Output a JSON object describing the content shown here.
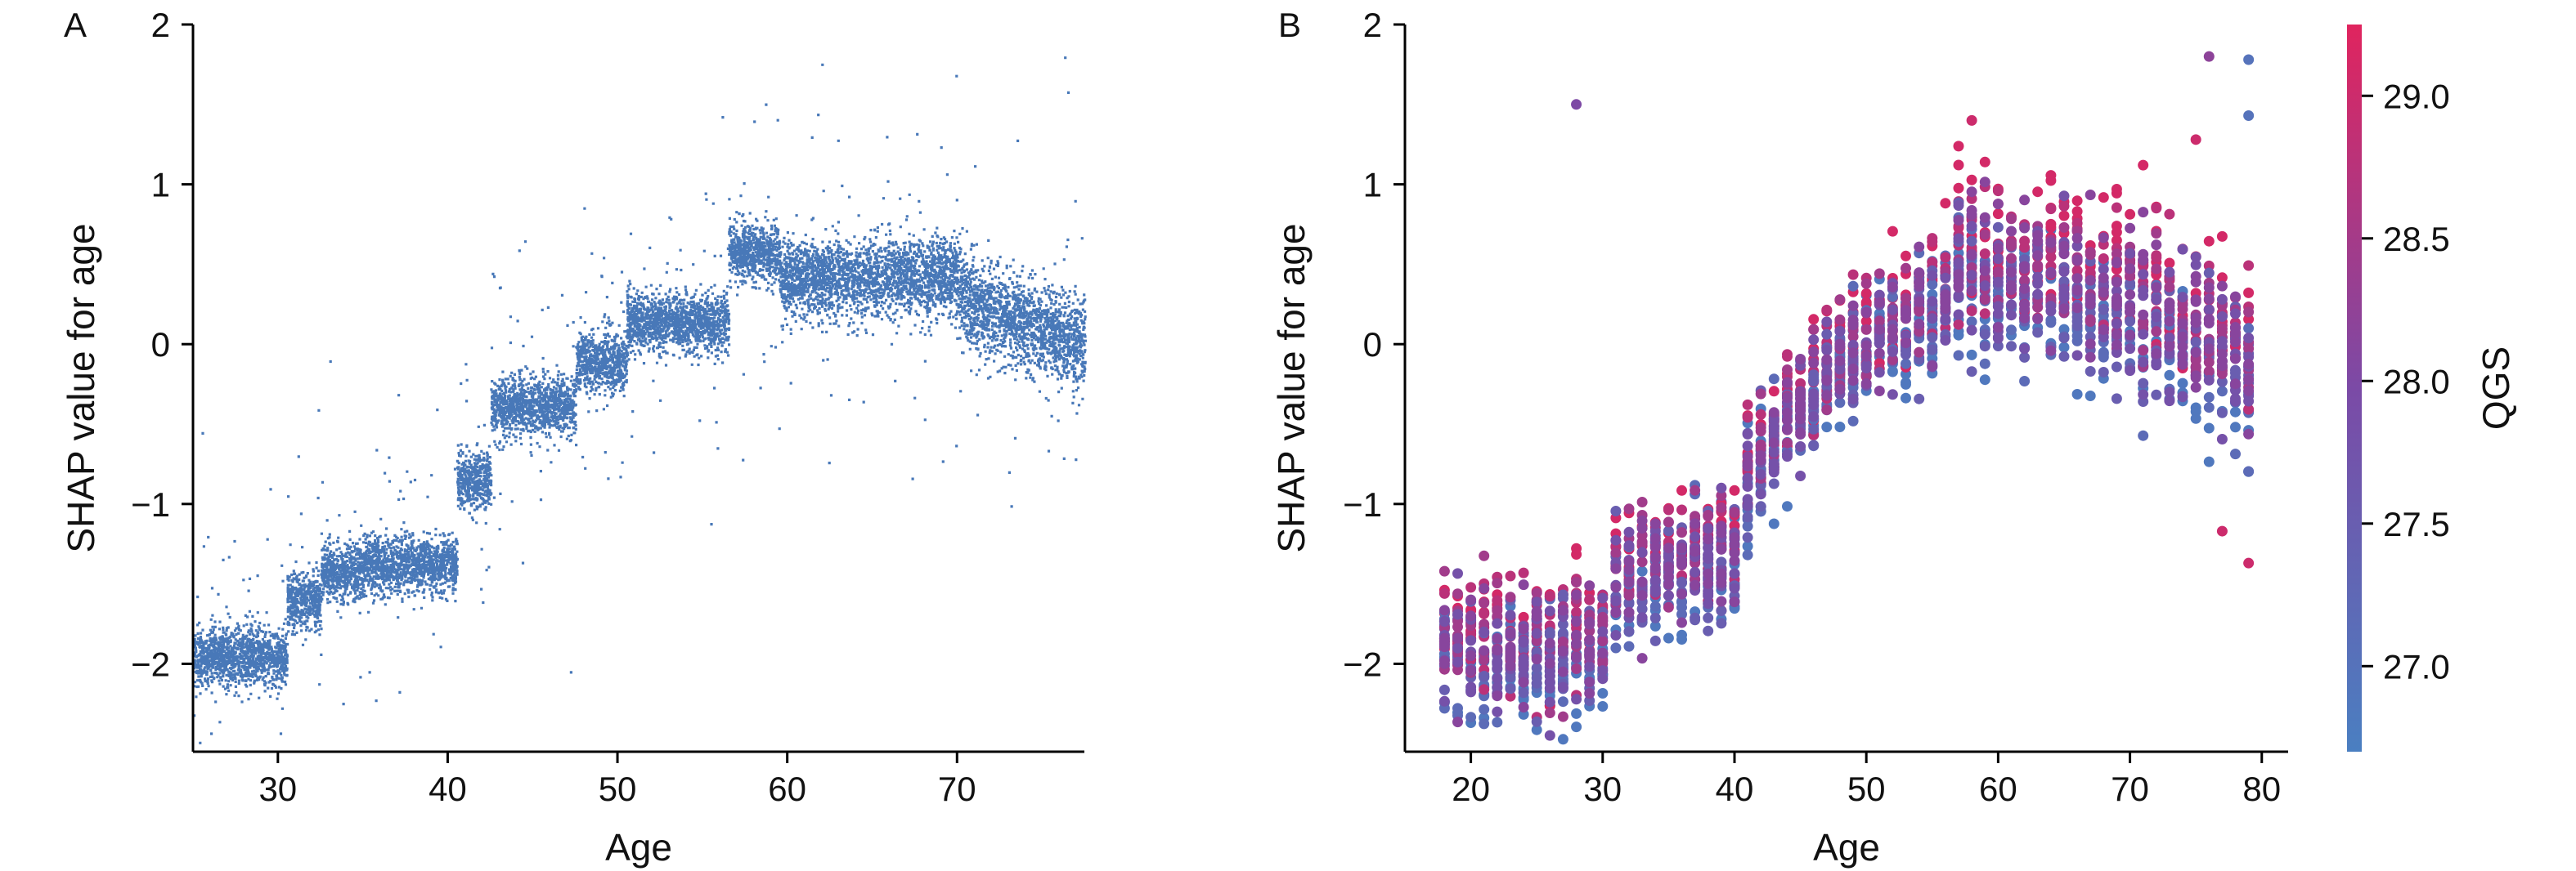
{
  "chart_data": [
    {
      "panel": "A",
      "type": "scatter",
      "xlabel": "Age",
      "ylabel": "SHAP value for age",
      "xlim": [
        25,
        77.5
      ],
      "ylim": [
        -2.55,
        2
      ],
      "xticks": [
        30,
        40,
        50,
        60,
        70
      ],
      "yticks": [
        -2,
        -1,
        0,
        1,
        2
      ],
      "color": "#4878b8",
      "grid": false,
      "profile": [
        {
          "x_start": 25,
          "x_end": 30.5,
          "y": -1.95
        },
        {
          "x_start": 30.5,
          "x_end": 32.5,
          "y": -1.6
        },
        {
          "x_start": 32.5,
          "x_end": 35,
          "y": -1.42
        },
        {
          "x_start": 35,
          "x_end": 40.5,
          "y": -1.37
        },
        {
          "x_start": 40.5,
          "x_end": 42.5,
          "y": -0.85
        },
        {
          "x_start": 42.5,
          "x_end": 47.5,
          "y": -0.38
        },
        {
          "x_start": 47.5,
          "x_end": 50.5,
          "y": -0.1
        },
        {
          "x_start": 50.5,
          "x_end": 56.5,
          "y": 0.15
        },
        {
          "x_start": 56.5,
          "x_end": 59.5,
          "y": 0.58
        },
        {
          "x_start": 59.5,
          "x_end": 70,
          "y": 0.42
        },
        {
          "x_start": 70,
          "x_end": 77.5,
          "y": 0.15
        }
      ],
      "outliers": [
        {
          "x": 58,
          "y": 1.4
        },
        {
          "x": 71,
          "y": 1.12
        },
        {
          "x": 73.5,
          "y": 1.28
        },
        {
          "x": 76.3,
          "y": 1.8
        },
        {
          "x": 44.5,
          "y": 0.65
        },
        {
          "x": 53,
          "y": 0.8
        },
        {
          "x": 36.5,
          "y": -0.85
        },
        {
          "x": 29.5,
          "y": -0.9
        },
        {
          "x": 25.5,
          "y": -0.55
        }
      ]
    },
    {
      "panel": "B",
      "type": "scatter",
      "xlabel": "Age",
      "ylabel": "SHAP value for age",
      "xlim": [
        15,
        82
      ],
      "ylim": [
        -2.55,
        2
      ],
      "xticks": [
        20,
        30,
        40,
        50,
        60,
        70,
        80
      ],
      "yticks": [
        -2,
        -1,
        0,
        1,
        2
      ],
      "grid": false,
      "ages": [
        18,
        79
      ],
      "colorbar": {
        "label": "QGS",
        "range": [
          26.7,
          29.25
        ],
        "ticks": [
          27.0,
          27.5,
          28.0,
          28.5,
          29.0
        ],
        "tick_labels": [
          "27.0",
          "27.5",
          "28.0",
          "28.5",
          "29.0"
        ],
        "low_color": "#4a7fc1",
        "mid_color": "#7b4aa6",
        "high_color": "#e0245e"
      },
      "profile": [
        {
          "age": 18,
          "y": -1.85
        },
        {
          "age": 25,
          "y": -1.9
        },
        {
          "age": 30,
          "y": -1.85
        },
        {
          "age": 31,
          "y": -1.5
        },
        {
          "age": 35,
          "y": -1.4
        },
        {
          "age": 40,
          "y": -1.3
        },
        {
          "age": 41,
          "y": -0.85
        },
        {
          "age": 45,
          "y": -0.4
        },
        {
          "age": 48,
          "y": -0.1
        },
        {
          "age": 52,
          "y": 0.1
        },
        {
          "age": 56,
          "y": 0.3
        },
        {
          "age": 57,
          "y": 0.55
        },
        {
          "age": 60,
          "y": 0.45
        },
        {
          "age": 65,
          "y": 0.4
        },
        {
          "age": 70,
          "y": 0.3
        },
        {
          "age": 75,
          "y": 0.05
        },
        {
          "age": 79,
          "y": -0.1
        }
      ],
      "outliers": [
        {
          "x": 28,
          "y": 1.5,
          "q": 28.0
        },
        {
          "x": 58,
          "y": 1.4,
          "q": 29.0
        },
        {
          "x": 71,
          "y": 1.12,
          "q": 29.1
        },
        {
          "x": 75,
          "y": 1.28,
          "q": 29.0
        },
        {
          "x": 76,
          "y": 1.8,
          "q": 28.2
        },
        {
          "x": 79,
          "y": 1.78,
          "q": 27.0
        },
        {
          "x": 79,
          "y": 1.43,
          "q": 27.0
        },
        {
          "x": 79,
          "y": -1.37,
          "q": 29.0
        },
        {
          "x": 77,
          "y": -1.17,
          "q": 29.0
        }
      ]
    }
  ],
  "panels": {
    "a": {
      "label": "A",
      "xlabel": "Age",
      "ylabel": "SHAP value for age",
      "x_tick_labels": [
        "30",
        "40",
        "50",
        "60",
        "70"
      ],
      "y_tick_labels": [
        "−2",
        "−1",
        "0",
        "1",
        "2"
      ]
    },
    "b": {
      "label": "B",
      "xlabel": "Age",
      "ylabel": "SHAP value for age",
      "x_tick_labels": [
        "20",
        "30",
        "40",
        "50",
        "60",
        "70",
        "80"
      ],
      "y_tick_labels": [
        "−2",
        "−1",
        "0",
        "1",
        "2"
      ],
      "colorbar_label": "QGS"
    }
  }
}
